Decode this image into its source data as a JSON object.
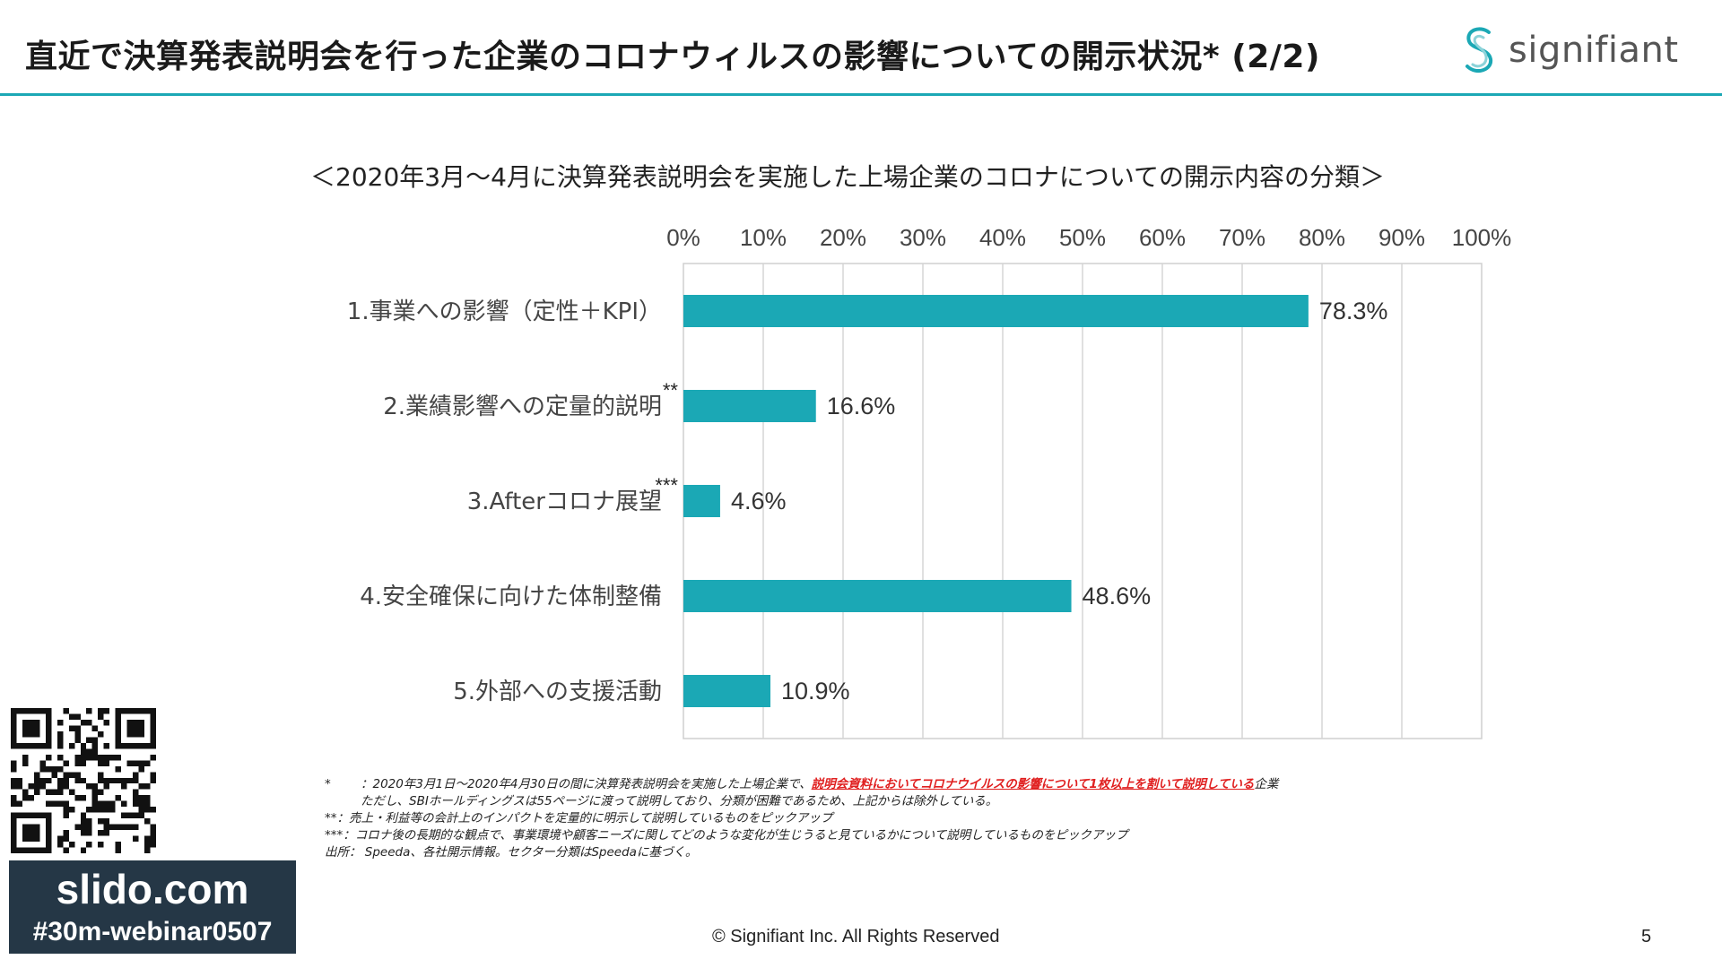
{
  "slide": {
    "title": "直近で決算発表説明会を行った企業のコロナウィルスの影響についての開示状況* (2/2)",
    "logo_text": "signifiant",
    "accent_color": "#1ba8b5",
    "copyright": "© Signifiant Inc. All Rights Reserved",
    "page_number": "5"
  },
  "chart_data": {
    "type": "bar",
    "orientation": "horizontal",
    "title": "＜2020年3月～4月に決算発表説明会を実施した上場企業のコロナについての開示内容の分類＞",
    "categories": [
      "1.事業への影響（定性＋KPI）",
      "2.業績影響への定量的説明",
      "3.Afterコロナ展望",
      "4.安全確保に向けた体制整備",
      "5.外部への支援活動"
    ],
    "category_marks": [
      "",
      "**",
      "***",
      "",
      ""
    ],
    "values": [
      78.3,
      16.6,
      4.6,
      48.6,
      10.9
    ],
    "value_labels": [
      "78.3%",
      "16.6%",
      "4.6%",
      "48.6%",
      "10.9%"
    ],
    "ticks": [
      0,
      10,
      20,
      30,
      40,
      50,
      60,
      70,
      80,
      90,
      100
    ],
    "tick_labels": [
      "0%",
      "10%",
      "20%",
      "30%",
      "40%",
      "50%",
      "60%",
      "70%",
      "80%",
      "90%",
      "100%"
    ],
    "xlim": [
      0,
      100
    ],
    "axis_position": "top",
    "grid": true,
    "bar_color": "#1ba8b5"
  },
  "notes": {
    "n1_key": "*",
    "n1_pre": "：2020年3月1日～2020年4月30日の間に決算発表説明会を実施した上場企業で、",
    "n1_red": "説明会資料においてコロナウイルスの影響について1枚以上を割いて説明している",
    "n1_post": "企業",
    "n1_line2": "ただし、SBIホールディングスは55ページに渡って説明しており、分類が困難であるため、上記からは除外している。",
    "n2": "**：売上・利益等の会計上のインパクトを定量的に明示して説明しているものをピックアップ",
    "n3": "***：コロナ後の長期的な観点で、事業環境や顧客ニーズに関してどのような変化が生じうると見ているかについて説明しているものをピックアップ",
    "n4": "出所：  Speeda、各社開示情報。セクター分類はSpeedaに基づく。"
  },
  "slido": {
    "domain": "slido.com",
    "tag": "#30m-webinar0507",
    "bg_color": "#253746"
  }
}
